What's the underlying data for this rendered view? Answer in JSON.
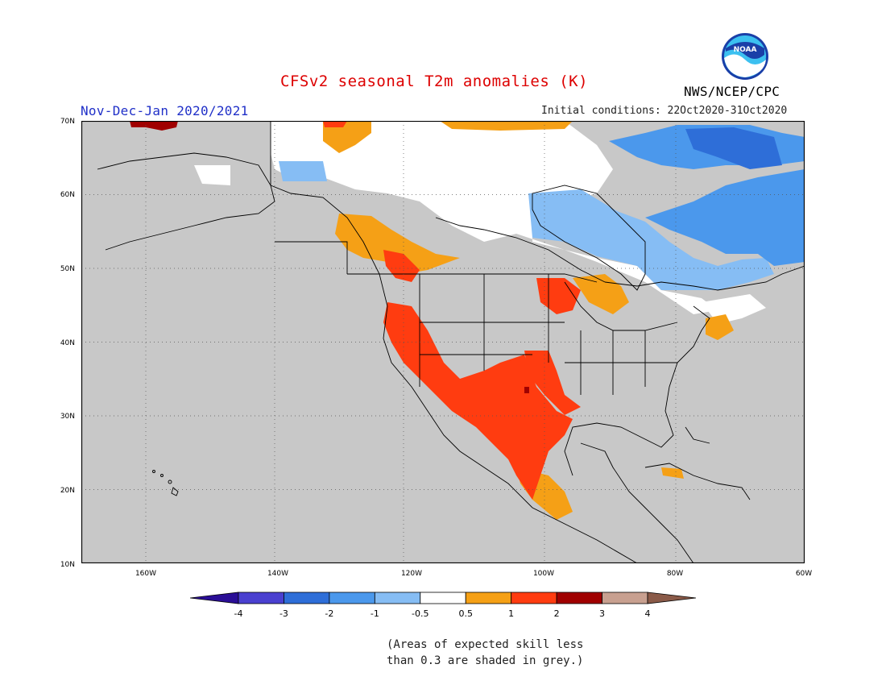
{
  "title": "CFSv2 seasonal T2m anomalies (K)",
  "period": "Nov-Dec-Jan 2020/2021",
  "initial_conditions": "Initial conditions: 22Oct2020-31Oct2020",
  "agency": "NWS/NCEP/CPC",
  "logo_text": "NOAA",
  "note_line1": "(Areas of expected skill less",
  "note_line2": "than 0.3 are shaded in grey.)",
  "map": {
    "lon_range": [
      -172,
      -60
    ],
    "lat_range": [
      10,
      70
    ],
    "lat_ticks": [
      "70N",
      "60N",
      "50N",
      "40N",
      "30N",
      "20N",
      "10N"
    ],
    "lon_ticks": [
      "160W",
      "140W",
      "120W",
      "100W",
      "80W",
      "60W"
    ],
    "grid": true,
    "anomaly_regions": [
      {
        "category": "white",
        "desc": "Northern Canada"
      },
      {
        "category": "-1",
        "desc": "Hudson Bay / Quebec"
      },
      {
        "category": "-1.5",
        "desc": "Labrador / Nunavut east"
      },
      {
        "category": "0.5",
        "desc": "Coastal British Columbia / Alberta"
      },
      {
        "category": "1",
        "desc": "US Southwest and Mexico"
      },
      {
        "category": "1",
        "desc": "Upper Midwest"
      }
    ]
  },
  "colorbar": {
    "labels": [
      "-4",
      "-3",
      "-2",
      "-1",
      "-0.5",
      "0.5",
      "1",
      "2",
      "3",
      "4"
    ],
    "colors": [
      "#2a0e96",
      "#4a40d0",
      "#2e6ed8",
      "#4b98ec",
      "#86bdf4",
      "#ffffff",
      "#f5a016",
      "#ff3c10",
      "#a00000",
      "#c8a090",
      "#8a5a48"
    ]
  },
  "colors": {
    "grey_skill": "#c8c8c8",
    "title_red": "#dd0000",
    "period_blue": "#2030c8"
  }
}
